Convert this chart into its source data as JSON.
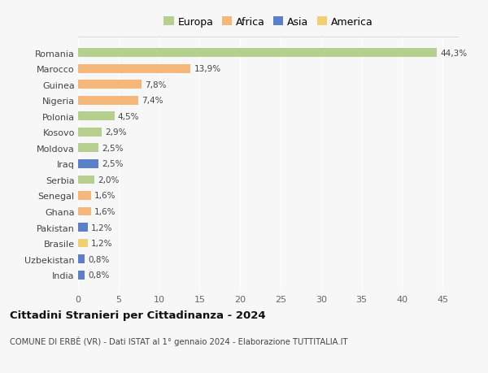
{
  "countries": [
    "Romania",
    "Marocco",
    "Guinea",
    "Nigeria",
    "Polonia",
    "Kosovo",
    "Moldova",
    "Iraq",
    "Serbia",
    "Senegal",
    "Ghana",
    "Pakistan",
    "Brasile",
    "Uzbekistan",
    "India"
  ],
  "values": [
    44.3,
    13.9,
    7.8,
    7.4,
    4.5,
    2.9,
    2.5,
    2.5,
    2.0,
    1.6,
    1.6,
    1.2,
    1.2,
    0.8,
    0.8
  ],
  "labels": [
    "44,3%",
    "13,9%",
    "7,8%",
    "7,4%",
    "4,5%",
    "2,9%",
    "2,5%",
    "2,5%",
    "2,0%",
    "1,6%",
    "1,6%",
    "1,2%",
    "1,2%",
    "0,8%",
    "0,8%"
  ],
  "continents": [
    "Europa",
    "Africa",
    "Africa",
    "Africa",
    "Europa",
    "Europa",
    "Europa",
    "Asia",
    "Europa",
    "Africa",
    "Africa",
    "Asia",
    "America",
    "Asia",
    "Asia"
  ],
  "continent_colors": {
    "Europa": "#b5cf8f",
    "Africa": "#f5b87a",
    "Asia": "#5b80c8",
    "America": "#f0d070"
  },
  "legend_order": [
    "Europa",
    "Africa",
    "Asia",
    "America"
  ],
  "xlim": [
    0,
    47
  ],
  "xticks": [
    0,
    5,
    10,
    15,
    20,
    25,
    30,
    35,
    40,
    45
  ],
  "title": "Cittadini Stranieri per Cittadinanza - 2024",
  "subtitle": "COMUNE DI ERBÈ (VR) - Dati ISTAT al 1° gennaio 2024 - Elaborazione TUTTITALIA.IT",
  "background_color": "#f7f7f7",
  "plot_bg_color": "#f7f7f7",
  "bar_height": 0.55,
  "label_fontsize": 7.5,
  "tick_fontsize": 8.0,
  "legend_fontsize": 9.0
}
